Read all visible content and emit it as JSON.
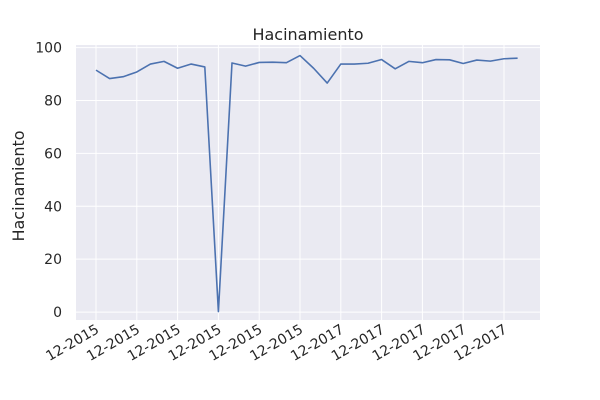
{
  "chart_data": {
    "type": "line",
    "title": "Hacinamiento",
    "xlabel": "",
    "ylabel": "Hacinamiento",
    "ylim": [
      -3,
      101
    ],
    "grid": true,
    "background": "#eaeaf2",
    "grid_color": "#ffffff",
    "line_color": "#4c72b0",
    "y_ticks": [
      0,
      20,
      40,
      60,
      80,
      100
    ],
    "x_tick_labels": [
      "12-2015",
      "12-2015",
      "12-2015",
      "12-2015",
      "12-2015",
      "12-2015",
      "12-2017",
      "12-2017",
      "12-2017",
      "12-2017",
      "12-2017"
    ],
    "series": [
      {
        "values": [
          91.5,
          88.3,
          89.0,
          90.8,
          93.8,
          94.8,
          92.2,
          93.8,
          92.7,
          0.2,
          94.2,
          93.0,
          94.4,
          94.5,
          94.3,
          97.0,
          92.2,
          86.6,
          93.8,
          93.8,
          94.1,
          95.5,
          92.0,
          94.8,
          94.3,
          95.5,
          95.4,
          94.0,
          95.3,
          94.9,
          95.8,
          96.0
        ]
      }
    ]
  }
}
